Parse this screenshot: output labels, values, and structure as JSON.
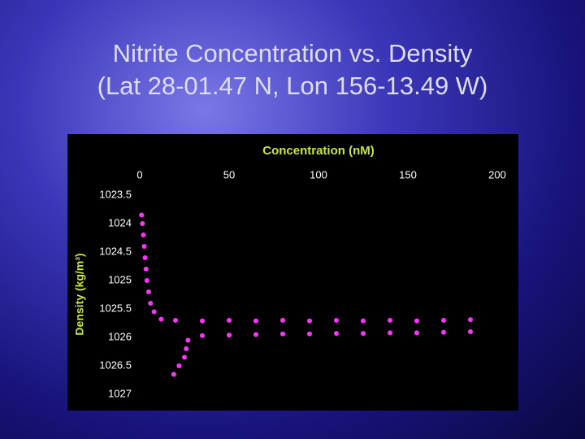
{
  "slide": {
    "title": "Nitrite Concentration vs. Density",
    "subtitle": "(Lat 28-01.47 N, Lon 156-13.49 W)"
  },
  "chart_data": {
    "type": "scatter",
    "x_label": "Concentration (nM)",
    "y_label": "Density (kg/m³)",
    "xlim": [
      0,
      200
    ],
    "xticks": [
      0,
      50,
      100,
      150,
      200
    ],
    "ylim": [
      1023.5,
      1027
    ],
    "yticks": [
      1023.5,
      1024,
      1024.5,
      1025,
      1025.5,
      1026,
      1026.5,
      1027
    ],
    "y_inverted": true,
    "x_axis_position": "top",
    "grid": false,
    "color": "#ff33ff",
    "x": [
      1,
      1.5,
      2,
      2.5,
      3,
      3.5,
      4,
      5,
      6,
      8,
      12,
      20,
      35,
      50,
      65,
      80,
      95,
      110,
      125,
      140,
      155,
      170,
      185,
      185,
      170,
      155,
      140,
      125,
      110,
      95,
      80,
      65,
      50,
      35,
      27,
      26,
      25,
      22,
      19
    ],
    "values": [
      1023.85,
      1024,
      1024.2,
      1024.4,
      1024.6,
      1024.8,
      1025,
      1025.2,
      1025.4,
      1025.55,
      1025.68,
      1025.7,
      1025.71,
      1025.7,
      1025.71,
      1025.7,
      1025.71,
      1025.7,
      1025.71,
      1025.7,
      1025.71,
      1025.7,
      1025.69,
      1025.9,
      1025.91,
      1025.92,
      1025.92,
      1025.93,
      1025.93,
      1025.94,
      1025.94,
      1025.95,
      1025.96,
      1025.97,
      1026.05,
      1026.2,
      1026.35,
      1026.5,
      1026.65
    ]
  }
}
